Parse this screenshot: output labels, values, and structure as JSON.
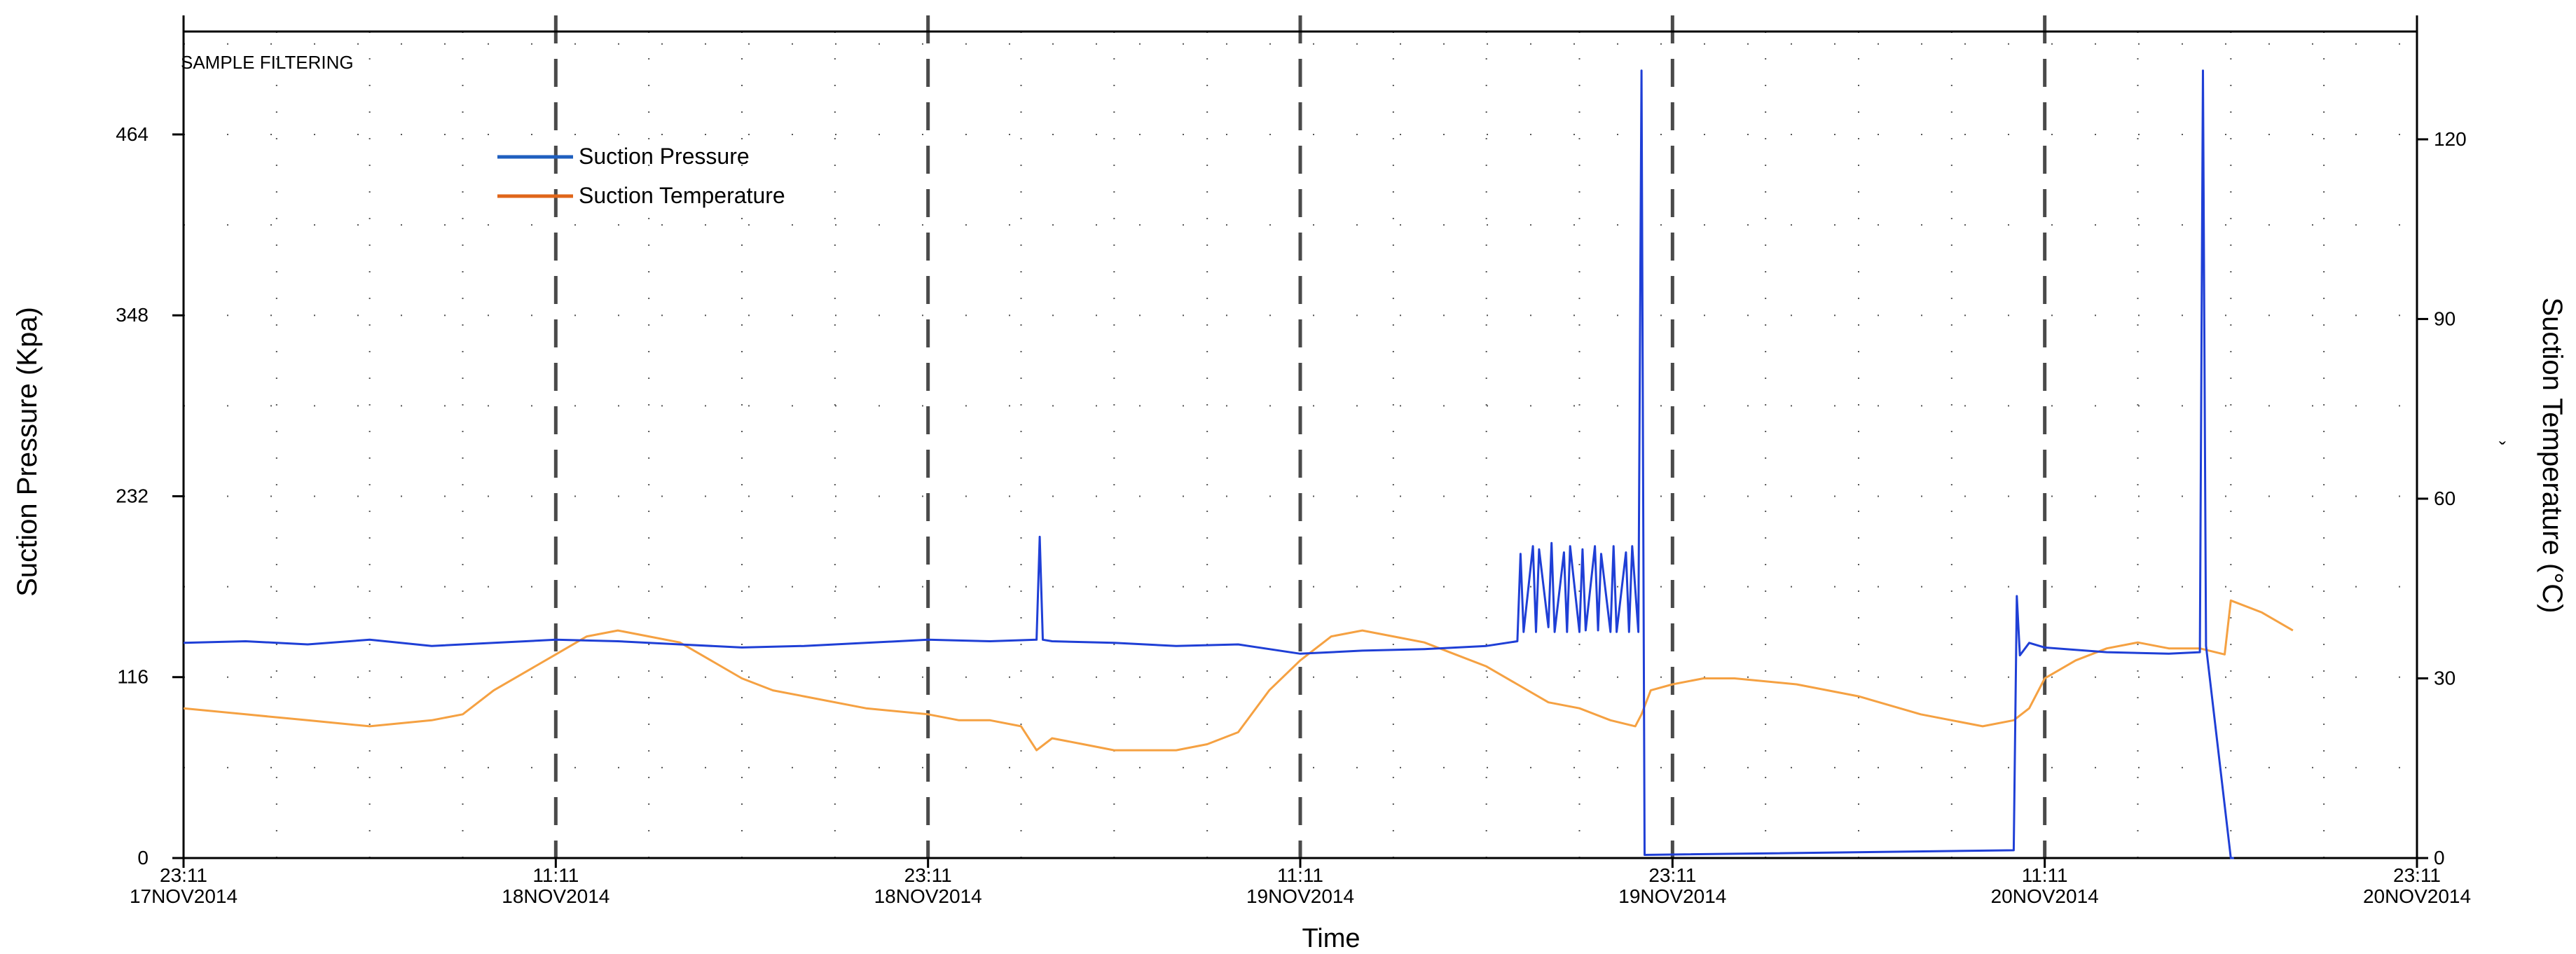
{
  "chart_data": {
    "type": "line",
    "annotation": "SAMPLE FILTERING",
    "xlabel": "Time",
    "ylabel_left": "Suction Pressure (Kpa)",
    "ylabel_right": "Suction Temperature (°C)",
    "right_axis_mark": "ˇ",
    "y_left_ticks": [
      0,
      116,
      232,
      348,
      464
    ],
    "y_left_lim": [
      0,
      530
    ],
    "y_right_ticks": [
      0,
      30,
      60,
      90,
      120
    ],
    "y_right_lim": [
      0,
      138
    ],
    "x_ticks": [
      {
        "t": 0,
        "time": "23:11",
        "date": "17NOV2014"
      },
      {
        "t": 12,
        "time": "11:11",
        "date": "18NOV2014"
      },
      {
        "t": 24,
        "time": "23:11",
        "date": "18NOV2014"
      },
      {
        "t": 36,
        "time": "11:11",
        "date": "19NOV2014"
      },
      {
        "t": 48,
        "time": "23:11",
        "date": "19NOV2014"
      },
      {
        "t": 60,
        "time": "11:11",
        "date": "20NOV2014"
      },
      {
        "t": 72,
        "time": "23:11",
        "date": "20NOV2014"
      }
    ],
    "x_lim": [
      0,
      72
    ],
    "grid": "dotted",
    "legend_position": "top-left",
    "colors": {
      "pressure": "#1f3fd6",
      "temperature": "#f5a142",
      "axis": "#000000",
      "dash": "#4a4a4a"
    },
    "series": [
      {
        "name": "Suction Pressure",
        "legend_color": "#1f5fbf",
        "x": [
          0,
          2,
          4,
          6,
          8,
          10,
          12,
          14,
          16,
          18,
          20,
          22,
          24,
          26,
          27.5,
          27.6,
          27.7,
          28,
          30,
          32,
          34,
          36,
          38,
          40,
          42,
          43,
          43.1,
          43.2,
          43.5,
          43.6,
          43.7,
          44,
          44.1,
          44.2,
          44.5,
          44.6,
          44.7,
          45,
          45.1,
          45.2,
          45.5,
          45.6,
          45.7,
          46,
          46.1,
          46.2,
          46.5,
          46.6,
          46.7,
          46.9,
          47.0,
          47.1,
          59.0,
          59.1,
          59.2,
          59.5,
          60,
          62,
          64,
          65.0,
          65.1,
          65.2,
          66.0,
          66.1
        ],
        "values": [
          138,
          139,
          137,
          140,
          136,
          138,
          140,
          139,
          137,
          135,
          136,
          138,
          140,
          139,
          140,
          206,
          140,
          139,
          138,
          136,
          137,
          131,
          133,
          134,
          136,
          139,
          195,
          145,
          200,
          145,
          198,
          148,
          202,
          145,
          196,
          145,
          200,
          145,
          198,
          146,
          200,
          146,
          195,
          145,
          200,
          145,
          196,
          145,
          200,
          145,
          505,
          2,
          5,
          168,
          130,
          138,
          135,
          132,
          131,
          132,
          505,
          136,
          0,
          0
        ]
      },
      {
        "name": "Suction Temperature",
        "legend_color": "#e0661a",
        "x": [
          0,
          2,
          4,
          6,
          8,
          9,
          10,
          12,
          13,
          14,
          15,
          16,
          17,
          18,
          19,
          20,
          22,
          24,
          25,
          26,
          27,
          27.5,
          28,
          29,
          30,
          31,
          32,
          33,
          34,
          35,
          36,
          37,
          38,
          39,
          40,
          41,
          42,
          43,
          44,
          45,
          46,
          46.8,
          47,
          47.3,
          48,
          49,
          50,
          52,
          54,
          56,
          58,
          59,
          59.5,
          60,
          61,
          62,
          63,
          64,
          65,
          65.8,
          66,
          67,
          68
        ],
        "values": [
          25,
          24,
          23,
          22,
          23,
          24,
          28,
          34,
          37,
          38,
          37,
          36,
          33,
          30,
          28,
          27,
          25,
          24,
          23,
          23,
          22,
          18,
          20,
          19,
          18,
          18,
          18,
          19,
          21,
          28,
          33,
          37,
          38,
          37,
          36,
          34,
          32,
          29,
          26,
          25,
          23,
          22,
          24,
          28,
          29,
          30,
          30,
          29,
          27,
          24,
          22,
          23,
          25,
          30,
          33,
          35,
          36,
          35,
          35,
          34,
          43,
          41,
          38
        ]
      }
    ]
  }
}
